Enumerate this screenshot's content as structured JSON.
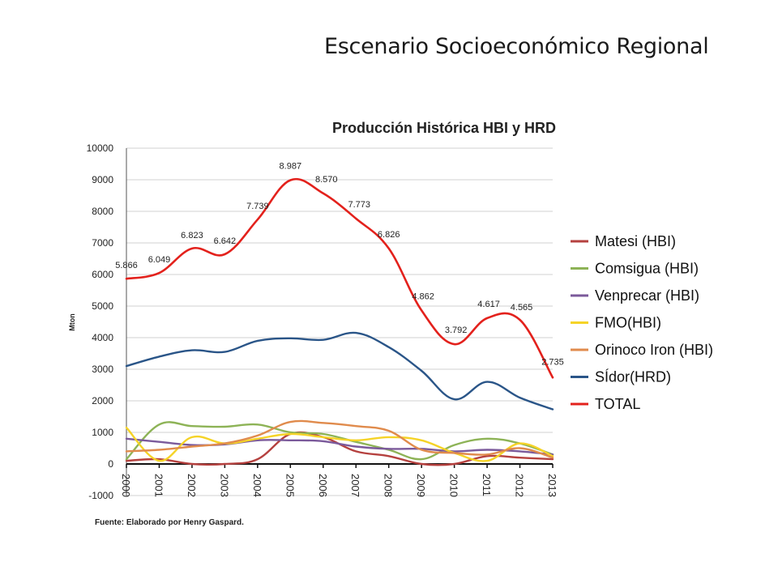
{
  "slide": {
    "title": "Escenario Socioeconómico Regional",
    "source": "Fuente: Elaborado por Henry Gaspard."
  },
  "chart_data": {
    "type": "line",
    "title": "Producción Histórica HBI y HRD",
    "ylabel": "Mton",
    "xlabel": "",
    "ylim": [
      -1000,
      10000
    ],
    "yticks": [
      "-1000",
      "0",
      "1000",
      "2000",
      "3000",
      "4000",
      "5000",
      "6000",
      "7000",
      "8000",
      "9000",
      "10000"
    ],
    "x": [
      "2000",
      "2001",
      "2002",
      "2003",
      "2004",
      "2005",
      "2006",
      "2007",
      "2008",
      "2009",
      "2010",
      "2011",
      "2012",
      "2013"
    ],
    "grid": true,
    "legend_position": "right",
    "series": [
      {
        "name": "Matesi (HBI)",
        "color": "#b5413f",
        "values": [
          100,
          150,
          0,
          0,
          150,
          950,
          850,
          400,
          250,
          0,
          0,
          250,
          200,
          150
        ]
      },
      {
        "name": "Comsigua (HBI)",
        "color": "#8db356",
        "values": [
          150,
          1250,
          1200,
          1180,
          1250,
          1000,
          950,
          700,
          450,
          150,
          600,
          800,
          650,
          300
        ]
      },
      {
        "name": "Venprecar (HBI)",
        "color": "#7b5a9b",
        "values": [
          800,
          700,
          600,
          620,
          750,
          750,
          720,
          550,
          480,
          480,
          400,
          450,
          400,
          300
        ]
      },
      {
        "name": "FMO(HBI)",
        "color": "#f5d327",
        "values": [
          1150,
          100,
          850,
          650,
          800,
          950,
          850,
          750,
          850,
          750,
          350,
          100,
          650,
          250
        ]
      },
      {
        "name": "Orinoco Iron (HBI)",
        "color": "#e08b4c",
        "values": [
          400,
          450,
          550,
          650,
          900,
          1330,
          1300,
          1200,
          1050,
          450,
          350,
          300,
          500,
          200
        ]
      },
      {
        "name": "SÍdor(HRD)",
        "color": "#2a5588",
        "values": [
          3100,
          3400,
          3600,
          3550,
          3900,
          3980,
          3930,
          4150,
          3700,
          2950,
          2050,
          2600,
          2100,
          1730
        ]
      },
      {
        "name": "TOTAL",
        "color": "#e3211c",
        "values": [
          5866,
          6049,
          6823,
          6642,
          7739,
          8987,
          8570,
          7773,
          6826,
          4862,
          3792,
          4617,
          4565,
          2735
        ],
        "labels": [
          "5.866",
          "6.049",
          "6.823",
          "6.642",
          "7.739",
          "8.987",
          "8.570",
          "7.773",
          "6.826",
          "4.862",
          "3.792",
          "4.617",
          "4.565",
          "2.735"
        ]
      }
    ]
  }
}
